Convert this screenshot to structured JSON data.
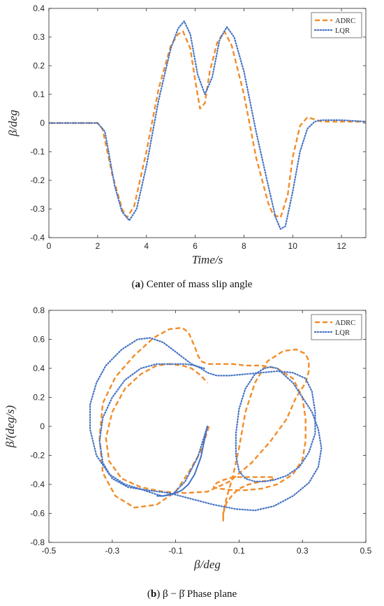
{
  "chart_data": [
    {
      "type": "line",
      "caption_letter": "a",
      "caption_text": "Center of mass slip angle",
      "xlabel": "Time/s",
      "ylabel": "β/deg",
      "xlim": [
        0,
        13
      ],
      "ylim": [
        -0.4,
        0.4
      ],
      "xticks": [
        0,
        2,
        4,
        6,
        8,
        10,
        12
      ],
      "yticks": [
        -0.4,
        -0.3,
        -0.2,
        -0.1,
        0,
        0.1,
        0.2,
        0.3,
        0.4
      ],
      "ytick_labels": [
        "-0.4",
        "-0.3",
        "-0.2",
        "-0.1",
        "0",
        "0.1",
        "0.2",
        "0.3",
        "0.4"
      ],
      "grid": false,
      "legend": "top-right",
      "series": [
        {
          "name": "ADRC",
          "color": "#F28C28",
          "style": "dashed",
          "x": [
            0,
            2.0,
            2.2,
            2.6,
            3.0,
            3.2,
            3.5,
            4.0,
            4.5,
            5.0,
            5.3,
            5.5,
            5.8,
            6.0,
            6.2,
            6.4,
            6.6,
            6.9,
            7.2,
            7.5,
            8.0,
            8.5,
            9.0,
            9.2,
            9.5,
            9.8,
            10.0,
            10.3,
            10.6,
            10.8,
            11.2,
            12,
            13
          ],
          "y": [
            0,
            0,
            -0.02,
            -0.18,
            -0.3,
            -0.33,
            -0.29,
            -0.1,
            0.12,
            0.27,
            0.31,
            0.32,
            0.26,
            0.15,
            0.05,
            0.07,
            0.18,
            0.28,
            0.32,
            0.27,
            0.1,
            -0.12,
            -0.28,
            -0.32,
            -0.33,
            -0.25,
            -0.12,
            -0.01,
            0.02,
            0.015,
            0.005,
            0.005,
            0.005
          ]
        },
        {
          "name": "LQR",
          "color": "#4472C4",
          "style": "dotted",
          "x": [
            0,
            2.0,
            2.3,
            2.7,
            3.0,
            3.3,
            3.6,
            4.0,
            4.5,
            5.0,
            5.3,
            5.55,
            5.8,
            6.1,
            6.4,
            6.7,
            7.0,
            7.3,
            7.6,
            8.0,
            8.5,
            9.0,
            9.3,
            9.5,
            9.7,
            10.0,
            10.3,
            10.6,
            10.9,
            11.2,
            12,
            13
          ],
          "y": [
            0,
            0,
            -0.03,
            -0.22,
            -0.31,
            -0.34,
            -0.3,
            -0.15,
            0.08,
            0.26,
            0.33,
            0.355,
            0.31,
            0.17,
            0.1,
            0.16,
            0.29,
            0.335,
            0.3,
            0.18,
            -0.03,
            -0.22,
            -0.33,
            -0.37,
            -0.36,
            -0.24,
            -0.1,
            -0.02,
            0.005,
            0.01,
            0.01,
            0.005
          ]
        }
      ]
    },
    {
      "type": "line",
      "caption_letter": "b",
      "caption_text": "β − β̇  Phase plane",
      "xlabel": "β/deg",
      "ylabel": "β̇/(deg/s)",
      "xlim": [
        -0.5,
        0.5
      ],
      "ylim": [
        -0.8,
        0.8
      ],
      "xticks": [
        -0.5,
        -0.3,
        -0.1,
        0.1,
        0.3,
        0.5
      ],
      "xtick_labels": [
        "-0.5",
        "-0.3",
        "-0.1",
        "0.1",
        "0.3",
        "0.5"
      ],
      "yticks": [
        -0.8,
        -0.6,
        -0.4,
        -0.2,
        0,
        0.2,
        0.4,
        0.6,
        0.8
      ],
      "ytick_labels": [
        "-0.8",
        "-0.6",
        "-0.4",
        "-0.2",
        "0",
        "0.2",
        "0.4",
        "0.6",
        "0.8"
      ],
      "grid": false,
      "legend": "top-right",
      "series": [
        {
          "name": "ADRC",
          "color": "#F28C28",
          "style": "dashed",
          "x": [
            0.005,
            -0.02,
            -0.06,
            -0.1,
            -0.16,
            -0.23,
            -0.29,
            -0.33,
            -0.34,
            -0.33,
            -0.29,
            -0.23,
            -0.17,
            -0.12,
            -0.08,
            -0.06,
            -0.05,
            -0.04,
            -0.03,
            -0.02,
            -0.01,
            0.0,
            0.02,
            0.05,
            0.08,
            0.12,
            0.17,
            0.22,
            0.27,
            0.3,
            0.31,
            0.31,
            0.3,
            0.27,
            0.22,
            0.17,
            0.12,
            0.08,
            0.04,
            0.02,
            0.02,
            0.03,
            0.05,
            0.08,
            0.12,
            0.16,
            0.19,
            0.21,
            0.21,
            0.2,
            0.17,
            0.13,
            0.1,
            0.08,
            0.06,
            0.05,
            0.05,
            0.05,
            0.05,
            0.06,
            0.08,
            0.1,
            0.12,
            0.15,
            0.19,
            0.24,
            0.28,
            0.31,
            0.32,
            0.32,
            0.31,
            0.28,
            0.25,
            0.2,
            0.14,
            0.07,
            0.0,
            -0.07,
            -0.14,
            -0.21,
            -0.27,
            -0.31,
            -0.32,
            -0.3,
            -0.26,
            -0.21,
            -0.16,
            -0.12,
            -0.08,
            -0.05,
            -0.02,
            0.0
          ],
          "y": [
            0.0,
            -0.17,
            -0.32,
            -0.45,
            -0.54,
            -0.56,
            -0.48,
            -0.32,
            -0.08,
            0.16,
            0.34,
            0.49,
            0.61,
            0.67,
            0.68,
            0.65,
            0.6,
            0.55,
            0.49,
            0.45,
            0.44,
            0.43,
            0.43,
            0.43,
            0.43,
            0.42,
            0.42,
            0.4,
            0.33,
            0.2,
            0.05,
            -0.1,
            -0.23,
            -0.33,
            -0.4,
            -0.43,
            -0.44,
            -0.44,
            -0.43,
            -0.42,
            -0.41,
            -0.39,
            -0.37,
            -0.35,
            -0.35,
            -0.35,
            -0.35,
            -0.35,
            -0.36,
            -0.37,
            -0.38,
            -0.4,
            -0.43,
            -0.47,
            -0.53,
            -0.6,
            -0.64,
            -0.65,
            -0.6,
            -0.5,
            -0.35,
            -0.15,
            0.1,
            0.3,
            0.45,
            0.52,
            0.53,
            0.5,
            0.45,
            0.38,
            0.3,
            0.2,
            0.05,
            -0.1,
            -0.25,
            -0.38,
            -0.45,
            -0.46,
            -0.45,
            -0.42,
            -0.36,
            -0.24,
            -0.08,
            0.1,
            0.26,
            0.36,
            0.42,
            0.43,
            0.42,
            0.4,
            0.35,
            0.3
          ]
        },
        {
          "name": "LQR",
          "color": "#4472C4",
          "style": "dotted",
          "x": [
            0.0,
            -0.03,
            -0.07,
            -0.11,
            -0.14,
            -0.16,
            -0.2,
            -0.26,
            -0.31,
            -0.35,
            -0.37,
            -0.37,
            -0.35,
            -0.32,
            -0.27,
            -0.22,
            -0.18,
            -0.14,
            -0.11,
            -0.08,
            -0.05,
            -0.02,
            0.0,
            0.03,
            0.07,
            0.12,
            0.17,
            0.22,
            0.27,
            0.31,
            0.33,
            0.34,
            0.34,
            0.32,
            0.29,
            0.25,
            0.21,
            0.18,
            0.15,
            0.12,
            0.1,
            0.09,
            0.09,
            0.1,
            0.12,
            0.15,
            0.18,
            0.2,
            0.22,
            0.24,
            0.27,
            0.3,
            0.33,
            0.35,
            0.36,
            0.35,
            0.32,
            0.27,
            0.21,
            0.15,
            0.09,
            0.02,
            -0.05,
            -0.12,
            -0.19,
            -0.25,
            -0.3,
            -0.33,
            -0.34,
            -0.33,
            -0.3,
            -0.26,
            -0.21,
            -0.16,
            -0.11,
            -0.07,
            -0.04,
            -0.01
          ],
          "y": [
            0.0,
            -0.21,
            -0.38,
            -0.47,
            -0.48,
            -0.47,
            -0.44,
            -0.4,
            -0.33,
            -0.2,
            -0.02,
            0.15,
            0.3,
            0.42,
            0.53,
            0.6,
            0.61,
            0.58,
            0.53,
            0.48,
            0.43,
            0.4,
            0.37,
            0.35,
            0.35,
            0.36,
            0.37,
            0.38,
            0.37,
            0.33,
            0.24,
            0.1,
            -0.05,
            -0.18,
            -0.28,
            -0.34,
            -0.37,
            -0.38,
            -0.38,
            -0.36,
            -0.31,
            -0.2,
            -0.05,
            0.12,
            0.26,
            0.36,
            0.4,
            0.41,
            0.4,
            0.36,
            0.3,
            0.2,
            0.1,
            -0.02,
            -0.15,
            -0.28,
            -0.39,
            -0.48,
            -0.55,
            -0.58,
            -0.57,
            -0.54,
            -0.5,
            -0.46,
            -0.44,
            -0.42,
            -0.36,
            -0.25,
            -0.1,
            0.06,
            0.2,
            0.32,
            0.4,
            0.43,
            0.43,
            0.43,
            0.42,
            0.4
          ]
        },
        {
          "name": "",
          "color": "#4472C4",
          "style": "solid",
          "x": [
            0.0,
            -0.01,
            -0.02,
            -0.04,
            -0.06,
            -0.08,
            -0.1,
            -0.12,
            -0.14,
            -0.16
          ],
          "y": [
            0.0,
            -0.1,
            -0.21,
            -0.33,
            -0.4,
            -0.44,
            -0.46,
            -0.47,
            -0.48,
            -0.48
          ]
        }
      ]
    }
  ]
}
